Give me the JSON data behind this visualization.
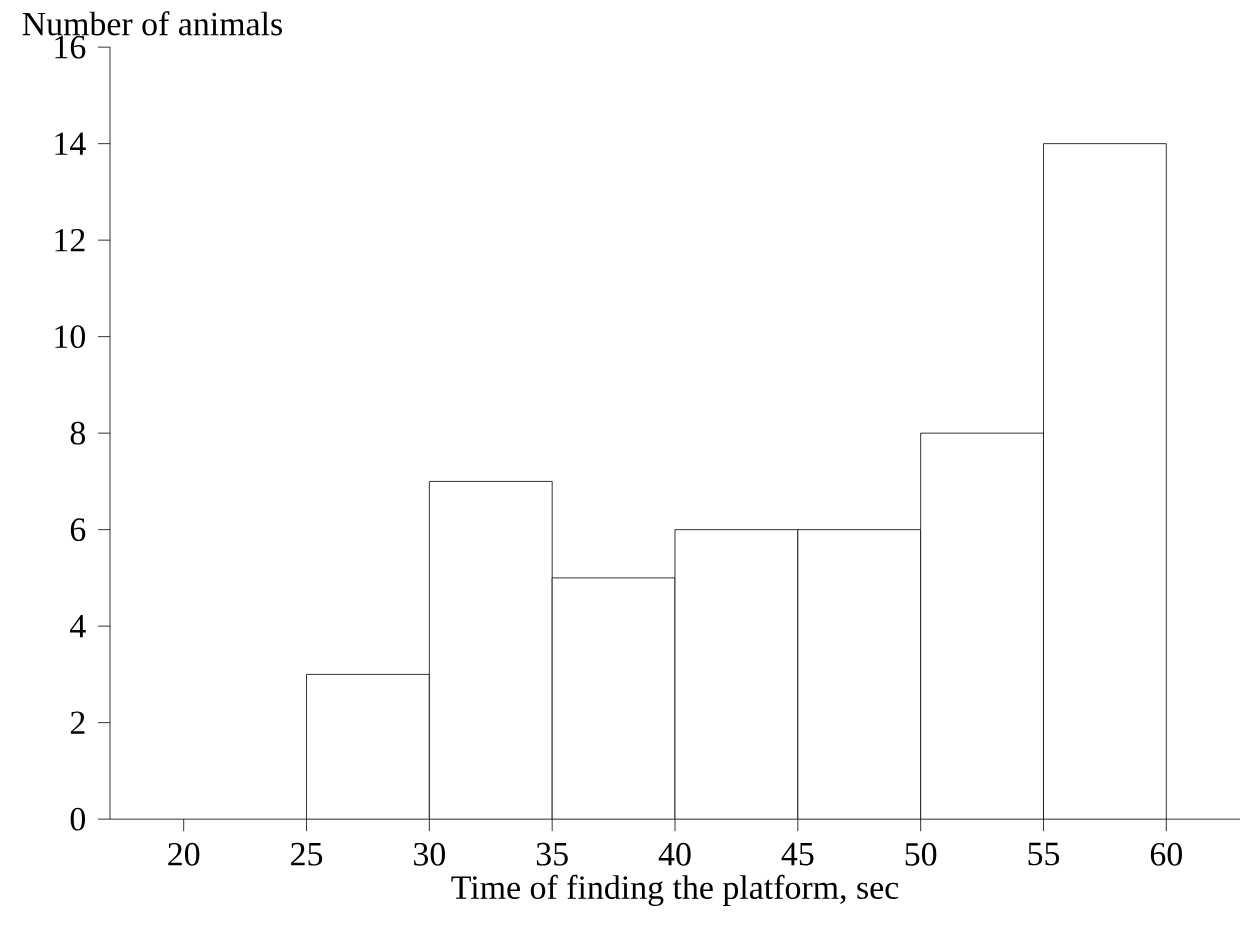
{
  "chart_data": {
    "type": "histogram",
    "xlabel": "Time of finding the platform, sec",
    "ylabel": "Number of animals",
    "bins": [
      25,
      30,
      35,
      40,
      45,
      50,
      55,
      60
    ],
    "values": [
      3,
      7,
      5,
      6,
      6,
      8,
      14
    ],
    "color": "#ffffff",
    "xlim": [
      17,
      63
    ],
    "xticks": [
      20,
      25,
      30,
      35,
      40,
      45,
      50,
      55,
      60
    ],
    "ylim": [
      0,
      16
    ],
    "yticks": [
      0,
      2,
      4,
      6,
      8,
      10,
      12,
      14,
      16
    ],
    "grid": false
  }
}
